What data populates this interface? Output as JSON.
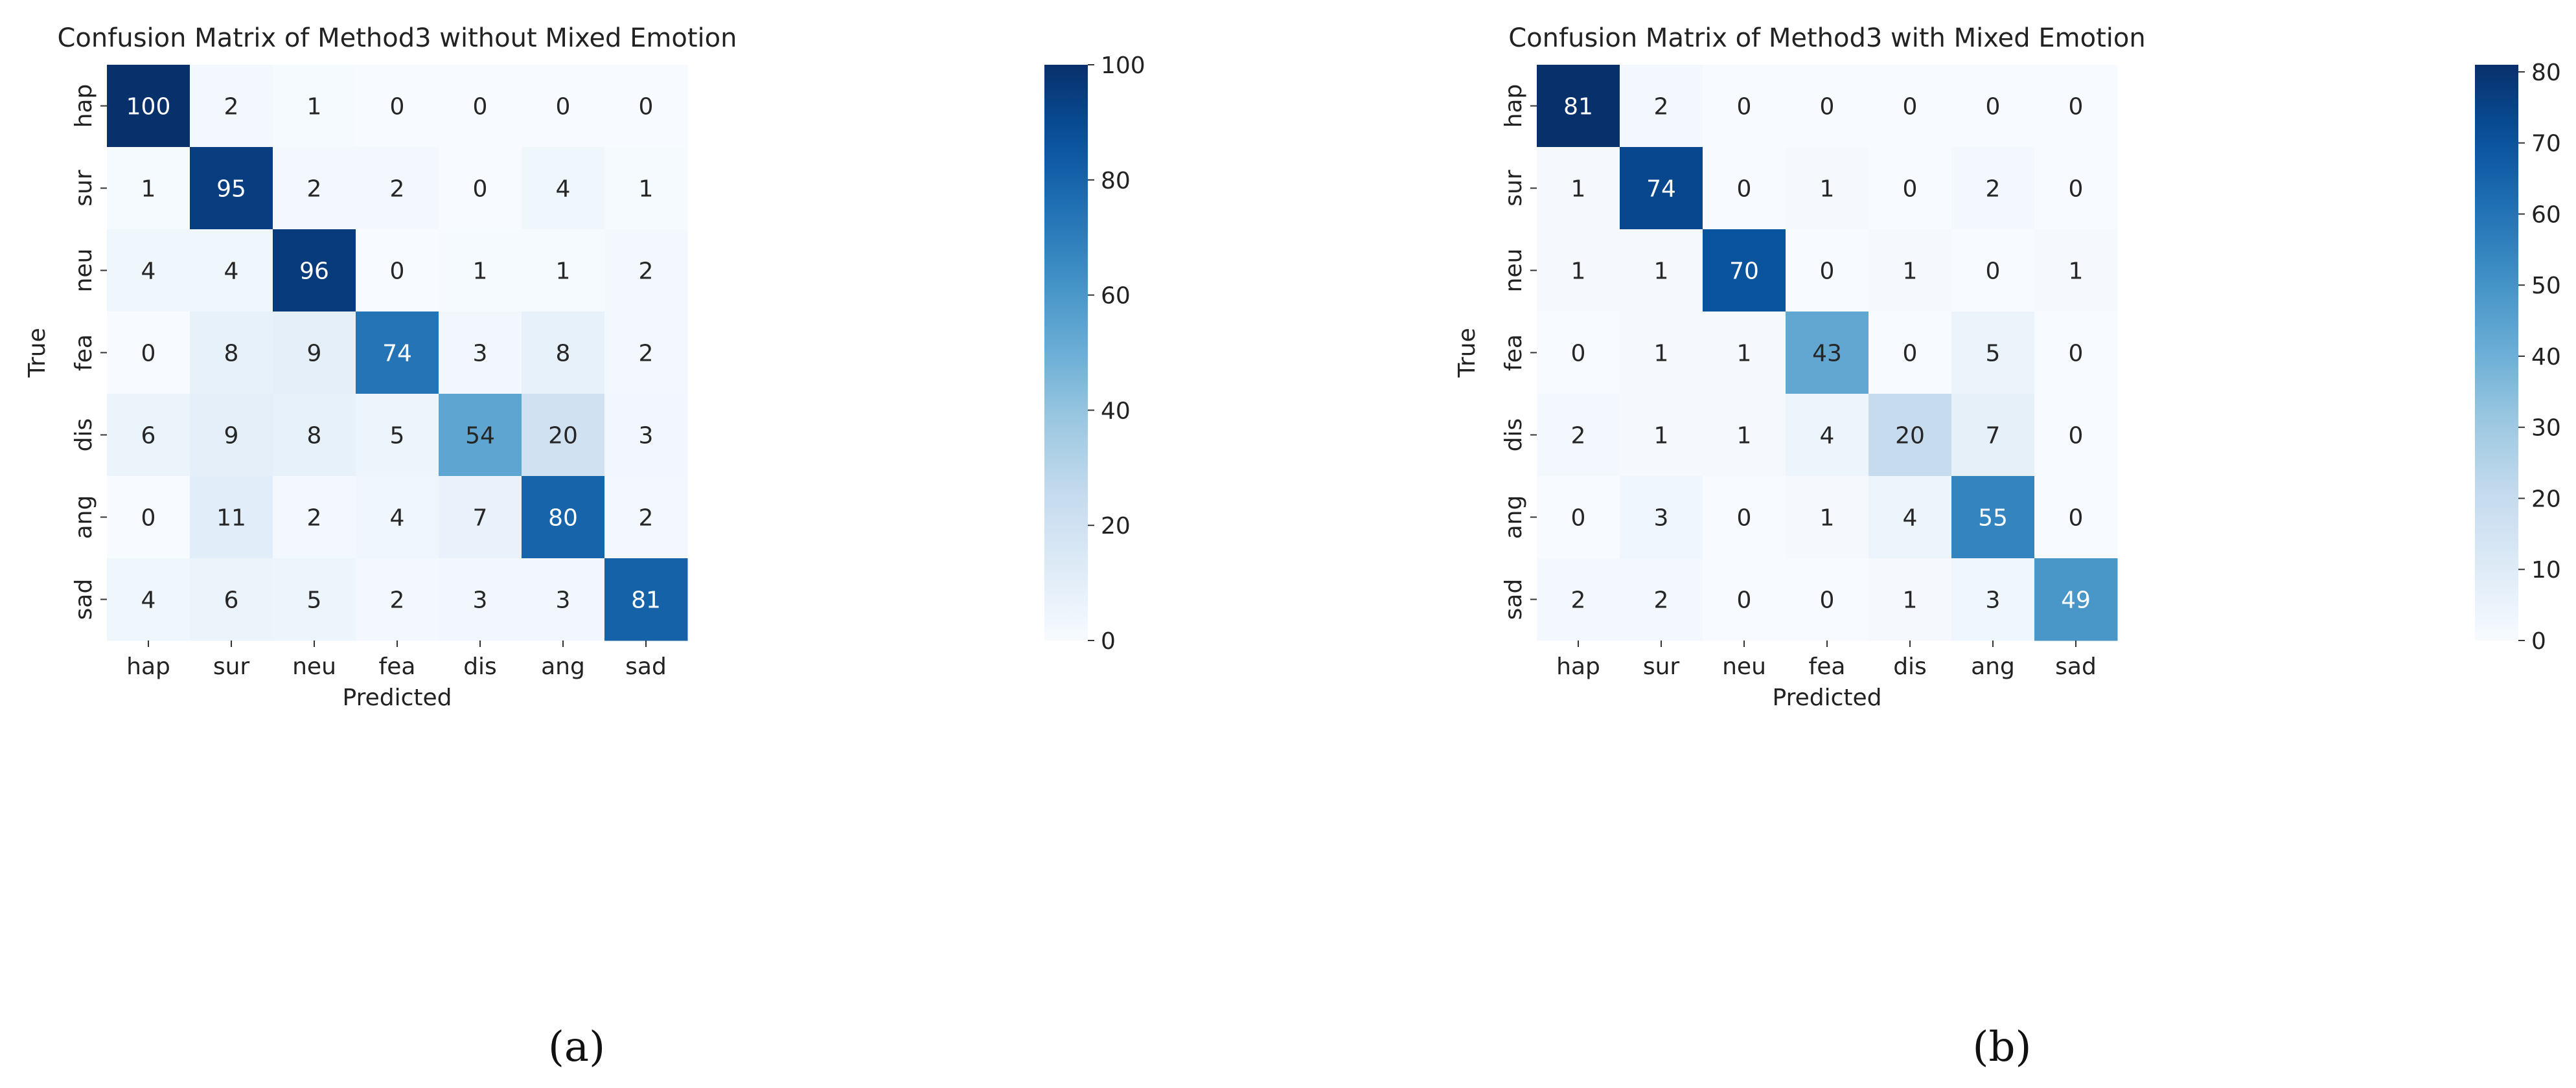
{
  "chart_data": [
    {
      "type": "heatmap",
      "title": "Confusion Matrix of Method3  without Mixed Emotion",
      "xlabel": "Predicted",
      "ylabel": "True",
      "x_categories": [
        "hap",
        "sur",
        "neu",
        "fea",
        "dis",
        "ang",
        "sad"
      ],
      "y_categories": [
        "hap",
        "sur",
        "neu",
        "fea",
        "dis",
        "ang",
        "sad"
      ],
      "values": [
        [
          100,
          2,
          1,
          0,
          0,
          0,
          0
        ],
        [
          1,
          95,
          2,
          2,
          0,
          4,
          1
        ],
        [
          4,
          4,
          96,
          0,
          1,
          1,
          2
        ],
        [
          0,
          8,
          9,
          74,
          3,
          8,
          2
        ],
        [
          6,
          9,
          8,
          5,
          54,
          20,
          3
        ],
        [
          0,
          11,
          2,
          4,
          7,
          80,
          2
        ],
        [
          4,
          6,
          5,
          2,
          3,
          3,
          81
        ]
      ],
      "colorbar": {
        "min": 0,
        "max": 100,
        "ticks": [
          0,
          20,
          40,
          60,
          80,
          100
        ],
        "cmap": "Blues"
      },
      "caption": "(a)"
    },
    {
      "type": "heatmap",
      "title": "Confusion Matrix of Method3  with Mixed Emotion",
      "xlabel": "Predicted",
      "ylabel": "True",
      "x_categories": [
        "hap",
        "sur",
        "neu",
        "fea",
        "dis",
        "ang",
        "sad"
      ],
      "y_categories": [
        "hap",
        "sur",
        "neu",
        "fea",
        "dis",
        "ang",
        "sad"
      ],
      "values": [
        [
          81,
          2,
          0,
          0,
          0,
          0,
          0
        ],
        [
          1,
          74,
          0,
          1,
          0,
          2,
          0
        ],
        [
          1,
          1,
          70,
          0,
          1,
          0,
          1
        ],
        [
          0,
          1,
          1,
          43,
          0,
          5,
          0
        ],
        [
          2,
          1,
          1,
          4,
          20,
          7,
          0
        ],
        [
          0,
          3,
          0,
          1,
          4,
          55,
          0
        ],
        [
          2,
          2,
          0,
          0,
          1,
          3,
          49
        ]
      ],
      "colorbar": {
        "min": 0,
        "max": 81,
        "ticks": [
          0,
          10,
          20,
          30,
          40,
          50,
          60,
          70,
          80
        ],
        "cmap": "Blues"
      },
      "caption": "(b)"
    }
  ]
}
